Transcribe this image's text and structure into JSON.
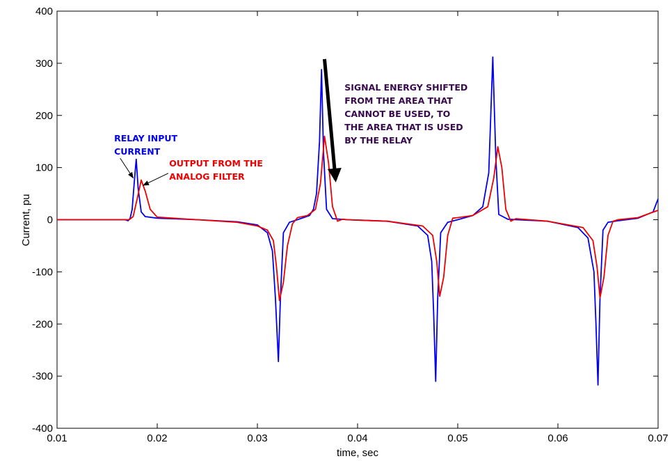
{
  "chart_data": {
    "type": "line",
    "title": "",
    "xlabel": "time, sec",
    "ylabel": "Current, pu",
    "xlim": [
      0.01,
      0.07
    ],
    "ylim": [
      -400,
      400
    ],
    "xticks": [
      0.01,
      0.02,
      0.03,
      0.04,
      0.05,
      0.06,
      0.07
    ],
    "yticks": [
      -400,
      -300,
      -200,
      -100,
      0,
      100,
      200,
      300,
      400
    ],
    "xtick_labels": [
      "0.01",
      "0.02",
      "0.03",
      "0.04",
      "0.05",
      "0.06",
      "0.07"
    ],
    "ytick_labels": [
      "-400",
      "-300",
      "-200",
      "-100",
      "0",
      "100",
      "200",
      "300",
      "400"
    ],
    "grid": false,
    "series": [
      {
        "color": "#0000ee",
        "points": [
          [
            0.01,
            0
          ],
          [
            0.0168,
            0
          ],
          [
            0.0171,
            -2
          ],
          [
            0.0173,
            3
          ],
          [
            0.0175,
            20
          ],
          [
            0.0177,
            70
          ],
          [
            0.0179,
            116
          ],
          [
            0.0181,
            60
          ],
          [
            0.0184,
            15
          ],
          [
            0.0188,
            6
          ],
          [
            0.02,
            3
          ],
          [
            0.024,
            0
          ],
          [
            0.028,
            -4
          ],
          [
            0.03,
            -10
          ],
          [
            0.031,
            -25
          ],
          [
            0.0315,
            -60
          ],
          [
            0.0318,
            -150
          ],
          [
            0.0321,
            -272
          ],
          [
            0.0323,
            -150
          ],
          [
            0.0326,
            -25
          ],
          [
            0.0332,
            -5
          ],
          [
            0.034,
            0
          ],
          [
            0.0352,
            8
          ],
          [
            0.0356,
            20
          ],
          [
            0.0359,
            50
          ],
          [
            0.0362,
            150
          ],
          [
            0.0364,
            288
          ],
          [
            0.0366,
            130
          ],
          [
            0.0369,
            20
          ],
          [
            0.0375,
            2
          ],
          [
            0.039,
            0
          ],
          [
            0.043,
            -3
          ],
          [
            0.046,
            -12
          ],
          [
            0.047,
            -30
          ],
          [
            0.0474,
            -80
          ],
          [
            0.0476,
            -180
          ],
          [
            0.0478,
            -310
          ],
          [
            0.048,
            -150
          ],
          [
            0.0483,
            -25
          ],
          [
            0.049,
            -5
          ],
          [
            0.05,
            0
          ],
          [
            0.0515,
            8
          ],
          [
            0.0525,
            25
          ],
          [
            0.0531,
            90
          ],
          [
            0.0535,
            312
          ],
          [
            0.0538,
            120
          ],
          [
            0.0541,
            10
          ],
          [
            0.055,
            1
          ],
          [
            0.059,
            -3
          ],
          [
            0.062,
            -15
          ],
          [
            0.063,
            -35
          ],
          [
            0.0636,
            -100
          ],
          [
            0.0638,
            -200
          ],
          [
            0.064,
            -317
          ],
          [
            0.0642,
            -150
          ],
          [
            0.0645,
            -20
          ],
          [
            0.065,
            -5
          ],
          [
            0.066,
            -2
          ],
          [
            0.068,
            3
          ],
          [
            0.0695,
            15
          ],
          [
            0.07,
            40
          ]
        ]
      },
      {
        "color": "#ee0000",
        "points": [
          [
            0.01,
            0
          ],
          [
            0.0172,
            0
          ],
          [
            0.0176,
            6
          ],
          [
            0.018,
            40
          ],
          [
            0.0184,
            76
          ],
          [
            0.0188,
            55
          ],
          [
            0.0193,
            20
          ],
          [
            0.02,
            5
          ],
          [
            0.024,
            0
          ],
          [
            0.028,
            -5
          ],
          [
            0.03,
            -12
          ],
          [
            0.031,
            -20
          ],
          [
            0.0316,
            -40
          ],
          [
            0.0319,
            -90
          ],
          [
            0.0322,
            -155
          ],
          [
            0.0326,
            -120
          ],
          [
            0.033,
            -50
          ],
          [
            0.0335,
            -8
          ],
          [
            0.034,
            4
          ],
          [
            0.035,
            8
          ],
          [
            0.0358,
            20
          ],
          [
            0.0363,
            70
          ],
          [
            0.0367,
            160
          ],
          [
            0.0371,
            110
          ],
          [
            0.0375,
            25
          ],
          [
            0.038,
            -3
          ],
          [
            0.0385,
            1
          ],
          [
            0.039,
            0
          ],
          [
            0.043,
            -3
          ],
          [
            0.0465,
            -12
          ],
          [
            0.0475,
            -30
          ],
          [
            0.0479,
            -80
          ],
          [
            0.0482,
            -147
          ],
          [
            0.0486,
            -110
          ],
          [
            0.049,
            -30
          ],
          [
            0.0495,
            3
          ],
          [
            0.05,
            4
          ],
          [
            0.0515,
            8
          ],
          [
            0.053,
            25
          ],
          [
            0.0536,
            80
          ],
          [
            0.054,
            140
          ],
          [
            0.0544,
            100
          ],
          [
            0.0548,
            20
          ],
          [
            0.0553,
            -3
          ],
          [
            0.0558,
            2
          ],
          [
            0.059,
            -3
          ],
          [
            0.0625,
            -15
          ],
          [
            0.0635,
            -40
          ],
          [
            0.0639,
            -90
          ],
          [
            0.0642,
            -150
          ],
          [
            0.0646,
            -110
          ],
          [
            0.065,
            -30
          ],
          [
            0.0655,
            -3
          ],
          [
            0.066,
            0
          ],
          [
            0.068,
            4
          ],
          [
            0.07,
            18
          ]
        ]
      }
    ],
    "annotations": [
      {
        "lines": [
          "RELAY INPUT",
          "CURRENT"
        ],
        "color": "#0000ee",
        "anchor": [
          0.0157,
          150
        ],
        "arrow_from": [
          0.0163,
          118
        ],
        "arrow_to": [
          0.0176,
          80
        ]
      },
      {
        "lines": [
          "OUTPUT FROM THE",
          "ANALOG FILTER"
        ],
        "color": "#ee0000",
        "anchor": [
          0.0212,
          102
        ],
        "arrow_from": [
          0.0211,
          89
        ],
        "arrow_to": [
          0.0186,
          66
        ]
      },
      {
        "lines": [
          "SIGNAL ENERGY SHIFTED",
          "FROM THE AREA THAT",
          "CANNOT BE USED, TO",
          "THE AREA THAT IS USED",
          "BY THE RELAY"
        ],
        "color": "#3a0a4f",
        "anchor": [
          0.0387,
          248
        ],
        "arrow_from": [
          0.0367,
          308
        ],
        "arrow_to": [
          0.0378,
          77
        ],
        "bold_arrow": true
      }
    ]
  }
}
